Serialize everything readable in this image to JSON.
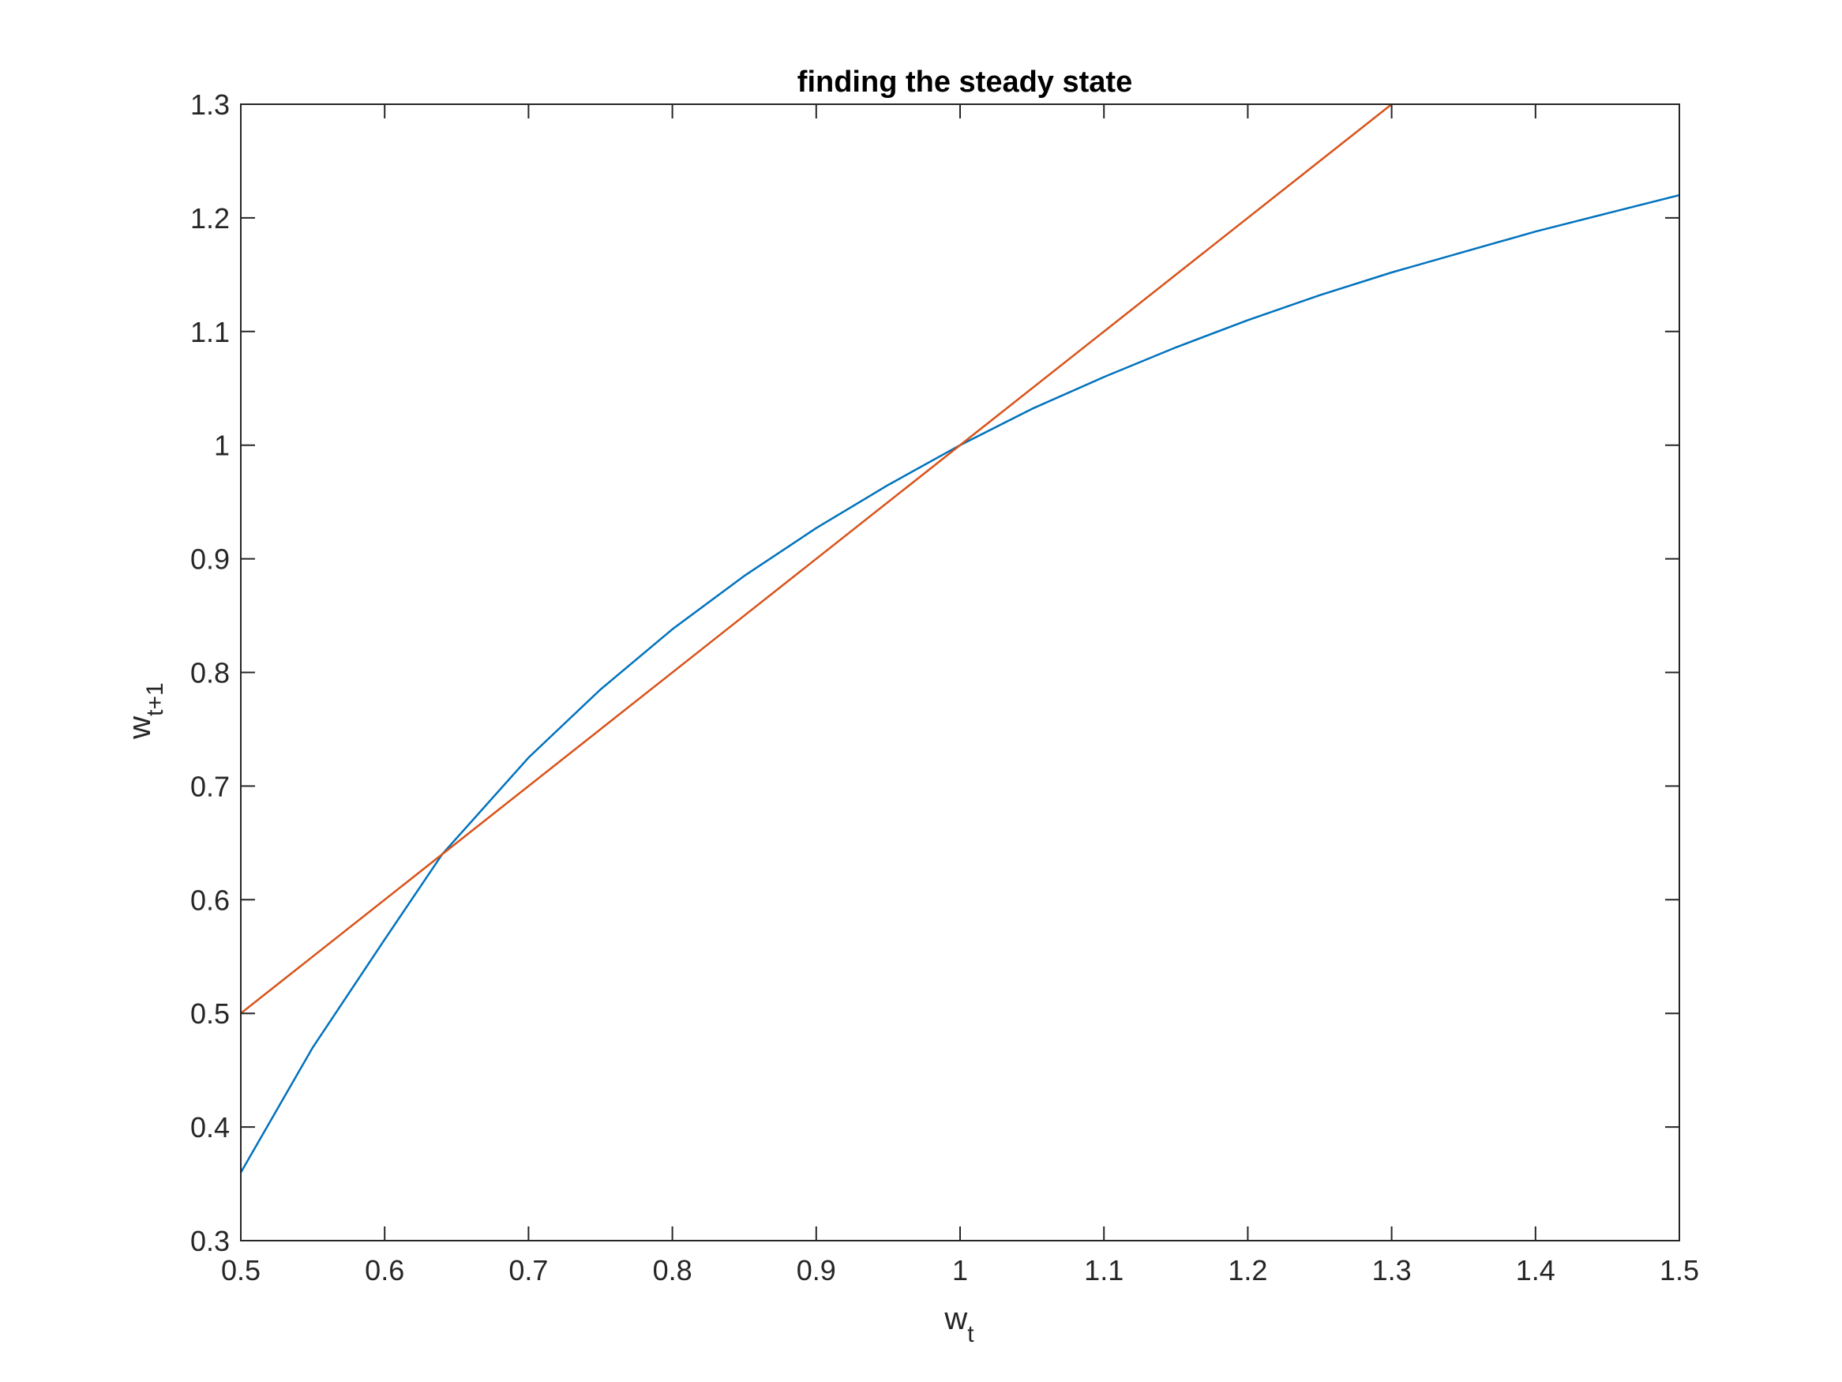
{
  "chart_data": {
    "type": "line",
    "title": "finding the steady state",
    "xlabel": {
      "base": "w",
      "subscript": "t"
    },
    "ylabel": {
      "base": "w",
      "subscript": "t+1"
    },
    "xlim": [
      0.5,
      1.5
    ],
    "ylim": [
      0.3,
      1.3
    ],
    "xticks": [
      "0.5",
      "0.6",
      "0.7",
      "0.8",
      "0.9",
      "1",
      "1.1",
      "1.2",
      "1.3",
      "1.4",
      "1.5"
    ],
    "yticks": [
      "0.3",
      "0.4",
      "0.5",
      "0.6",
      "0.7",
      "0.8",
      "0.9",
      "1",
      "1.1",
      "1.2",
      "1.3"
    ],
    "grid": false,
    "box": true,
    "series": [
      {
        "color": "#0072BD",
        "x": [
          0.5,
          0.55,
          0.6,
          0.64,
          0.7,
          0.75,
          0.8,
          0.85,
          0.9,
          0.95,
          1.0,
          1.05,
          1.1,
          1.15,
          1.2,
          1.25,
          1.3,
          1.35,
          1.4,
          1.45,
          1.5
        ],
        "y": [
          0.36,
          0.47,
          0.565,
          0.64,
          0.725,
          0.785,
          0.838,
          0.885,
          0.927,
          0.965,
          1.0,
          1.032,
          1.06,
          1.086,
          1.11,
          1.132,
          1.152,
          1.17,
          1.188,
          1.204,
          1.22
        ]
      },
      {
        "color": "#D95319",
        "x": [
          0.5,
          1.3
        ],
        "y": [
          0.5,
          1.3
        ]
      }
    ]
  }
}
